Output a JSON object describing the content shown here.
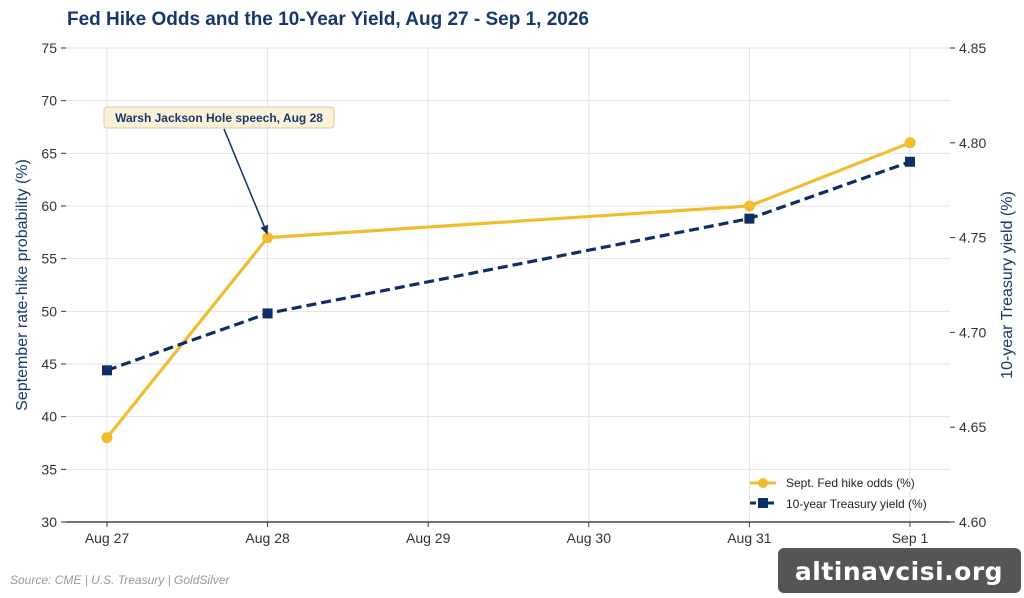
{
  "chart_data": {
    "type": "line",
    "title": "Fed Hike Odds and the 10-Year Yield, Aug 27 - Sep 1, 2026",
    "categories": [
      "Aug 27",
      "Aug 28",
      "Aug 29",
      "Aug 30",
      "Aug 31",
      "Sep 1"
    ],
    "series": [
      {
        "name": "Sept. Fed hike odds (%)",
        "axis": "left",
        "x": [
          "Aug 27",
          "Aug 28",
          "Aug 31",
          "Sep 1"
        ],
        "values": [
          38,
          57,
          60,
          66
        ],
        "color": "#f2bc2e",
        "marker": "circle",
        "line_style": "solid"
      },
      {
        "name": "10-year Treasury yield (%)",
        "axis": "right",
        "x": [
          "Aug 27",
          "Aug 28",
          "Aug 31",
          "Sep 1"
        ],
        "values": [
          4.68,
          4.71,
          4.76,
          4.79
        ],
        "color": "#0d2f66",
        "marker": "square",
        "line_style": "dashed"
      }
    ],
    "ylabel_left": "September rate-hike probability (%)",
    "ylabel_right": "10-year Treasury yield (%)",
    "ylim_left": [
      30,
      75
    ],
    "ylim_right": [
      4.6,
      4.85
    ],
    "yticks_left": [
      "30",
      "35",
      "40",
      "45",
      "50",
      "55",
      "60",
      "65",
      "70",
      "75"
    ],
    "yticks_right": [
      "4.60",
      "4.65",
      "4.70",
      "4.75",
      "4.80",
      "4.85"
    ],
    "grid": true,
    "legend_position": "bottom-right",
    "annotation": {
      "text": "Warsh Jackson Hole speech, Aug 28",
      "target_x": "Aug 28",
      "target_value": 57
    },
    "source": "Source: CME | U.S. Treasury | GoldSilver"
  },
  "watermark": "altinavcisi.org",
  "colors": {
    "title": "#17386b",
    "grid": "#e3e3e3",
    "annotation_bg": "#fbf1d8",
    "annotation_border": "#d9c9a0",
    "watermark_bg": "#555555"
  }
}
